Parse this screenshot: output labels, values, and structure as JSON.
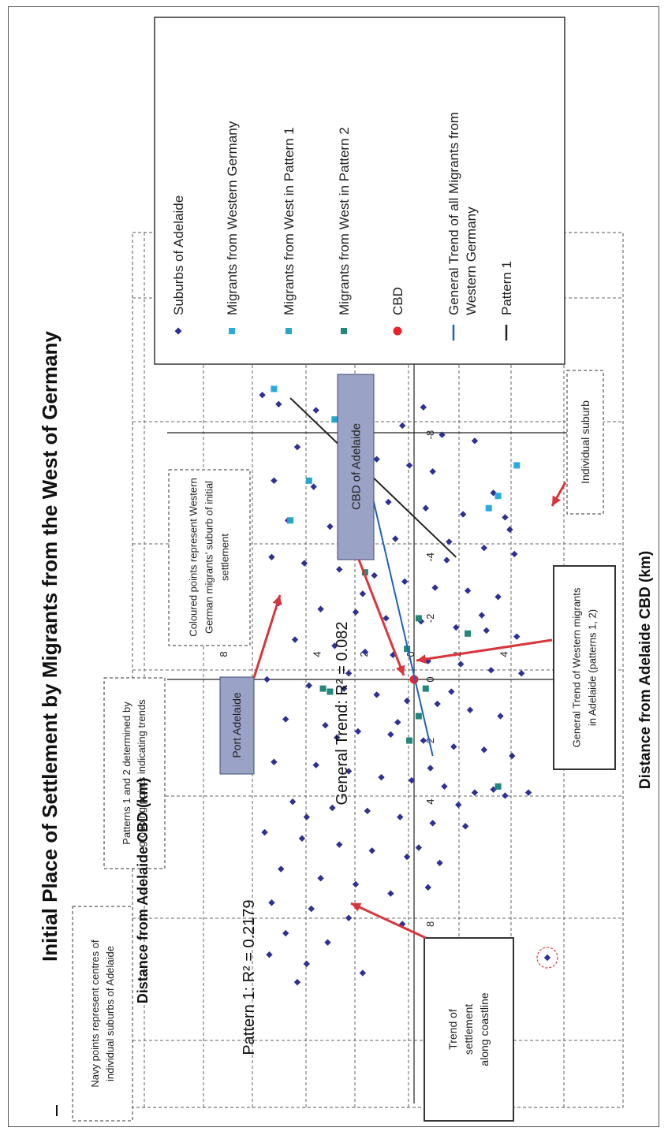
{
  "chart_data": {
    "type": "scatter",
    "title": "Initial Place of Settlement by Migrants from the West of Germany",
    "xlabel": "Distance from Adelaide CBD (km)",
    "ylabel": "Distance from Adelaide CBD (km)",
    "xlim": [
      -10,
      14
    ],
    "ylim": [
      -10,
      10
    ],
    "x_ticks": [
      {
        "value": -8,
        "label": "-8"
      },
      {
        "value": -4,
        "label": "-4"
      },
      {
        "value": -2,
        "label": "-2"
      },
      {
        "value": 0,
        "label": "0"
      },
      {
        "value": 2,
        "label": "2"
      },
      {
        "value": 4,
        "label": "4"
      },
      {
        "value": 8,
        "label": "8"
      }
    ],
    "y_ticks": [
      {
        "value": 8,
        "label": "8"
      },
      {
        "value": 4,
        "label": "4"
      },
      {
        "value": 2,
        "label": "2"
      },
      {
        "value": 0,
        "label": "0"
      },
      {
        "value": -2,
        "label": "2"
      },
      {
        "value": -4,
        "label": "4"
      }
    ],
    "colors": {
      "suburbs": "#2e3192",
      "migrants_west": "#29abe2",
      "pattern1": "#27a6c8",
      "pattern2": "#23877a",
      "cbd": "#e8242a",
      "general_trend": "#1f5fc4",
      "pattern1_trend": "#222222",
      "arrow": "#d9363c",
      "callout_fill": "#9aa2c6"
    },
    "series": [
      {
        "name": "Suburbs of Adelaide",
        "marker": "diamond",
        "points": [
          [
            -9.3,
            6.5
          ],
          [
            -9.0,
            5.8
          ],
          [
            -8.8,
            4.2
          ],
          [
            -8.6,
            2.0
          ],
          [
            -8.3,
            0.5
          ],
          [
            -8.0,
            -1.2
          ],
          [
            -7.6,
            5.0
          ],
          [
            -7.5,
            3.1
          ],
          [
            -7.2,
            1.6
          ],
          [
            -7.0,
            0.2
          ],
          [
            -6.8,
            -0.8
          ],
          [
            -6.5,
            6.0
          ],
          [
            -6.3,
            4.3
          ],
          [
            -6.0,
            2.6
          ],
          [
            -5.8,
            1.1
          ],
          [
            -5.6,
            -0.5
          ],
          [
            -5.4,
            -2.1
          ],
          [
            -5.2,
            5.4
          ],
          [
            -5.0,
            3.6
          ],
          [
            -4.8,
            2.0
          ],
          [
            -4.6,
            0.8
          ],
          [
            -4.5,
            -1.5
          ],
          [
            -4.3,
            -3.0
          ],
          [
            -4.1,
            -4.3
          ],
          [
            -4.0,
            6.1
          ],
          [
            -3.8,
            4.7
          ],
          [
            -3.6,
            3.2
          ],
          [
            -3.4,
            1.7
          ],
          [
            -3.2,
            0.4
          ],
          [
            -3.0,
            -0.9
          ],
          [
            -2.9,
            -2.3
          ],
          [
            -2.7,
            -3.6
          ],
          [
            -2.5,
            5.8
          ],
          [
            -2.3,
            4.0
          ],
          [
            -2.2,
            2.5
          ],
          [
            -2.0,
            1.2
          ],
          [
            -1.9,
            -0.3
          ],
          [
            -1.7,
            -1.8
          ],
          [
            -1.6,
            -3.1
          ],
          [
            -1.4,
            -4.4
          ],
          [
            -1.3,
            5.1
          ],
          [
            -1.1,
            3.4
          ],
          [
            -0.9,
            2.1
          ],
          [
            -0.8,
            0.9
          ],
          [
            -0.6,
            -0.6
          ],
          [
            -0.5,
            -2.0
          ],
          [
            -0.3,
            -3.3
          ],
          [
            -0.2,
            -4.6
          ],
          [
            0.0,
            6.3
          ],
          [
            0.2,
            4.5
          ],
          [
            0.3,
            3.0
          ],
          [
            0.5,
            1.6
          ],
          [
            0.7,
            0.3
          ],
          [
            0.8,
            -1.0
          ],
          [
            1.0,
            -2.4
          ],
          [
            1.2,
            -3.7
          ],
          [
            1.3,
            5.5
          ],
          [
            1.5,
            3.8
          ],
          [
            1.7,
            2.4
          ],
          [
            1.8,
            1.0
          ],
          [
            2.0,
            -0.4
          ],
          [
            2.2,
            -1.7
          ],
          [
            2.3,
            -3.0
          ],
          [
            2.5,
            -4.2
          ],
          [
            2.7,
            6.0
          ],
          [
            2.8,
            4.2
          ],
          [
            3.0,
            2.8
          ],
          [
            3.2,
            1.4
          ],
          [
            3.3,
            0.1
          ],
          [
            3.5,
            -1.3
          ],
          [
            3.7,
            -2.6
          ],
          [
            3.8,
            -3.9
          ],
          [
            4.0,
            5.2
          ],
          [
            4.2,
            3.5
          ],
          [
            4.3,
            2.0
          ],
          [
            4.5,
            0.6
          ],
          [
            4.7,
            -0.8
          ],
          [
            4.8,
            -2.2
          ],
          [
            5.0,
            6.4
          ],
          [
            5.2,
            4.8
          ],
          [
            5.4,
            3.2
          ],
          [
            5.6,
            1.8
          ],
          [
            5.8,
            0.3
          ],
          [
            6.0,
            -1.1
          ],
          [
            6.2,
            5.7
          ],
          [
            6.5,
            4.0
          ],
          [
            6.7,
            2.5
          ],
          [
            7.0,
            1.0
          ],
          [
            7.3,
            6.1
          ],
          [
            7.5,
            4.4
          ],
          [
            7.8,
            2.8
          ],
          [
            8.0,
            0.5
          ],
          [
            8.3,
            5.5
          ],
          [
            8.6,
            3.7
          ],
          [
            9.0,
            6.2
          ],
          [
            9.3,
            4.6
          ],
          [
            9.6,
            2.2
          ],
          [
            9.9,
            5.0
          ],
          [
            -7.8,
            -2.6
          ],
          [
            -6.1,
            -3.4
          ],
          [
            -3.9,
            -1.4
          ],
          [
            -2.1,
            -2.9
          ],
          [
            0.4,
            -1.6
          ],
          [
            1.4,
            0.7
          ],
          [
            2.9,
            -0.7
          ],
          [
            4.1,
            -1.9
          ],
          [
            5.5,
            -0.2
          ],
          [
            -5.3,
            -3.9
          ],
          [
            -8.9,
            -0.4
          ],
          [
            -4.9,
            -4.1
          ],
          [
            3.6,
            -3.4
          ],
          [
            6.8,
            -0.6
          ],
          [
            -0.2,
            2.8
          ],
          [
            1.9,
            3.3
          ],
          [
            -2.8,
            2.2
          ],
          [
            4.5,
            4.6
          ],
          [
            3.7,
            -4.9
          ]
        ]
      },
      {
        "name": "Migrants from Western Germany",
        "marker": "square",
        "points": [
          [
            -9.5,
            6.0
          ],
          [
            -7.0,
            -4.4
          ],
          [
            -6.0,
            -3.6
          ],
          [
            -5.6,
            -3.2
          ]
        ]
      },
      {
        "name": "Migrants from West in Pattern 1",
        "marker": "square",
        "points": [
          [
            -8.5,
            3.4
          ],
          [
            -6.5,
            4.5
          ],
          [
            -5.2,
            5.3
          ]
        ]
      },
      {
        "name": "Migrants from West in Pattern 2",
        "marker": "square",
        "points": [
          [
            -3.5,
            2.1
          ],
          [
            -2.0,
            -0.2
          ],
          [
            -1.5,
            -2.3
          ],
          [
            0.3,
            -0.5
          ],
          [
            1.2,
            -0.2
          ],
          [
            -1.0,
            0.3
          ],
          [
            0.4,
            3.6
          ],
          [
            2.0,
            0.2
          ],
          [
            3.5,
            -3.6
          ],
          [
            0.3,
            3.9
          ]
        ]
      },
      {
        "name": "CBD",
        "marker": "circle",
        "points": [
          [
            0,
            0
          ]
        ]
      }
    ],
    "trend_lines": [
      {
        "name": "General Trend of all Migrants from Western Germany",
        "r2_label": "General Trend: R² = 0.082",
        "from": [
          -9.0,
          2.7
        ],
        "to": [
          2.5,
          -0.8
        ]
      },
      {
        "name": "Pattern 1",
        "r2_label": "Pattern 1: R² = 0.2179",
        "from": [
          -9.2,
          5.3
        ],
        "to": [
          -4.0,
          -1.8
        ]
      }
    ],
    "legend": {
      "placement": "right",
      "items": [
        {
          "label": "Suburbs of Adelaide",
          "marker": "diamond",
          "color_key": "suburbs"
        },
        {
          "label": "Migrants from Western Germany",
          "marker": "square",
          "color_key": "migrants_west"
        },
        {
          "label": "Migrants from West in Pattern 1",
          "marker": "square",
          "color_key": "pattern1"
        },
        {
          "label": "Migrants from West in Pattern 2",
          "marker": "square",
          "color_key": "pattern2"
        },
        {
          "label": "CBD",
          "marker": "circle",
          "color_key": "cbd"
        },
        {
          "label": "General Trend of all Migrants from Western Germany",
          "marker": "line",
          "color_key": "general_trend"
        },
        {
          "label": "Pattern 1",
          "marker": "line",
          "color_key": "pattern1_trend"
        }
      ]
    },
    "annotations": {
      "navy_points": "Navy points represent centres of individual suburbs of Adelaide",
      "patterns": "Patterns 1 and 2 determined by grouping points indicating trends",
      "coloured_points": "Coloured points represent Western German migrants' suburb of initial settlement",
      "port_adelaide": "Port Adelaide",
      "cbd_adelaide": "CBD of Adelaide",
      "individual_suburb": "Individual suburb",
      "general_trend_box": "General Trend of Western migrants in Adelaide (patterns 1, 2)",
      "coastline_box": "Trend of settlement along coastline"
    }
  }
}
